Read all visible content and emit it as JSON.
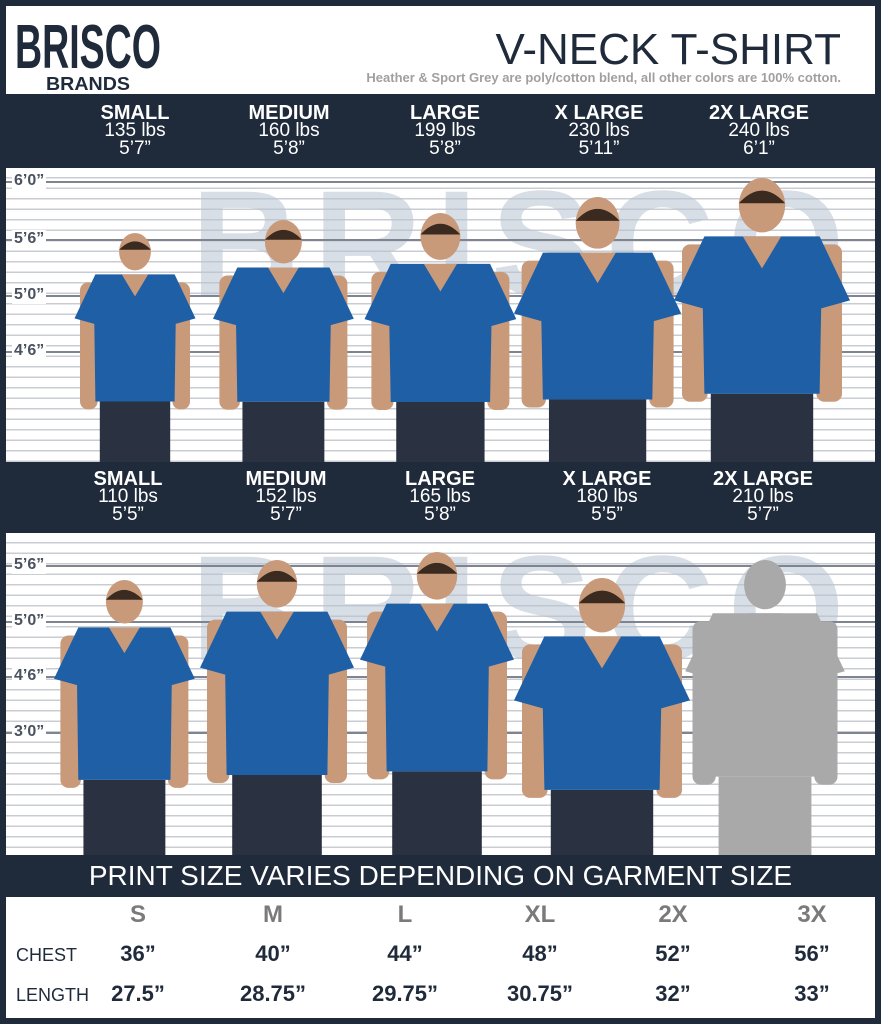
{
  "brand": {
    "name": "BRISCO",
    "sub": "BRANDS"
  },
  "title": "V-NECK T-SHIRT",
  "subtitle": "Heather & Sport Grey are poly/cotton blend, all other colors are 100% cotton.",
  "men": [
    {
      "size": "SMALL",
      "weight": "135 lbs",
      "height": "5’7”"
    },
    {
      "size": "MEDIUM",
      "weight": "160 lbs",
      "height": "5’8”"
    },
    {
      "size": "LARGE",
      "weight": "199 lbs",
      "height": "5’8”"
    },
    {
      "size": "X LARGE",
      "weight": "230 lbs",
      "height": "5’11”"
    },
    {
      "size": "2X LARGE",
      "weight": "240 lbs",
      "height": "6’1”"
    }
  ],
  "men_height_marks": [
    "6’0”",
    "5’6”",
    "5’0”",
    "4’6”"
  ],
  "women": [
    {
      "size": "SMALL",
      "weight": "110 lbs",
      "height": "5’5”"
    },
    {
      "size": "MEDIUM",
      "weight": "152 lbs",
      "height": "5’7”"
    },
    {
      "size": "LARGE",
      "weight": "165 lbs",
      "height": "5’8”"
    },
    {
      "size": "X LARGE",
      "weight": "180 lbs",
      "height": "5’5”"
    },
    {
      "size": "2X LARGE",
      "weight": "210 lbs",
      "height": "5’7”"
    }
  ],
  "women_height_marks": [
    "5’6”",
    "5’0”",
    "4’6”",
    "3’0”"
  ],
  "print_note": "PRINT SIZE VARIES DEPENDING ON GARMENT SIZE",
  "size_table": {
    "sizes": [
      "S",
      "M",
      "L",
      "XL",
      "2X",
      "3X"
    ],
    "rows": [
      {
        "label": "CHEST",
        "values": [
          "36”",
          "40”",
          "44”",
          "48”",
          "52”",
          "56”"
        ]
      },
      {
        "label": "LENGTH",
        "values": [
          "27.5”",
          "28.75”",
          "29.75”",
          "30.75”",
          "32”",
          "33”"
        ]
      }
    ]
  },
  "colors": {
    "navy": "#1f2a3a",
    "shirt": "#1f5fa6",
    "silhouette": "#a9a9a9"
  }
}
